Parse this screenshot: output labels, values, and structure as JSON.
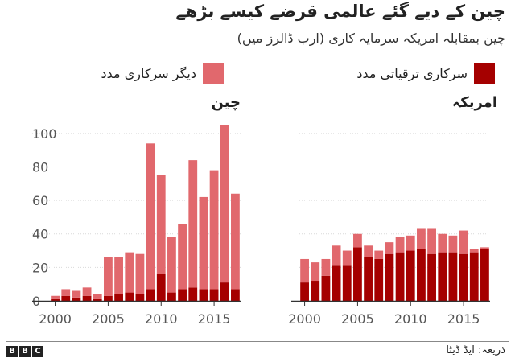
{
  "title": "چین کے دیے گئے عالمی قرضے کیسے بڑھے",
  "subtitle": "چین بمقابلہ امریکہ سرمایہ کاری (ارب ڈالرز میں)",
  "source": "ذریعہ: ایڈ ڈیٹا",
  "logo": [
    "B",
    "B",
    "C"
  ],
  "colors": {
    "dark": "#a50000",
    "light": "#e1686d"
  },
  "chart_data": [
    {
      "type": "bar",
      "stacked": true,
      "title": "چین",
      "x": [
        2000,
        2001,
        2002,
        2003,
        2004,
        2005,
        2006,
        2007,
        2008,
        2009,
        2010,
        2011,
        2012,
        2013,
        2014,
        2015,
        2016,
        2017
      ],
      "xticks": [
        "2000",
        "2005",
        "2010",
        "2015"
      ],
      "ylim": [
        0,
        110
      ],
      "yticks": [
        "0",
        "20",
        "40",
        "60",
        "80",
        "100"
      ],
      "grid": true,
      "series": [
        {
          "name": "سرکاری ترقیاتی مدد",
          "values": [
            1,
            3,
            2,
            3,
            1,
            3,
            4,
            5,
            4,
            7,
            16,
            5,
            7,
            8,
            7,
            7,
            11,
            7
          ]
        },
        {
          "name": "دیگر سرکاری مدد",
          "values": [
            2,
            4,
            4,
            5,
            3,
            23,
            22,
            24,
            24,
            87,
            59,
            33,
            39,
            76,
            55,
            71,
            94,
            57
          ]
        }
      ]
    },
    {
      "type": "bar",
      "stacked": true,
      "title": "امریکہ",
      "x": [
        2000,
        2001,
        2002,
        2003,
        2004,
        2005,
        2006,
        2007,
        2008,
        2009,
        2010,
        2011,
        2012,
        2013,
        2014,
        2015,
        2016,
        2017
      ],
      "xticks": [
        "2000",
        "2005",
        "2010",
        "2015"
      ],
      "ylim": [
        0,
        110
      ],
      "grid": true,
      "series": [
        {
          "name": "سرکاری ترقیاتی مدد",
          "values": [
            11,
            12,
            15,
            21,
            21,
            32,
            26,
            25,
            28,
            29,
            30,
            31,
            28,
            29,
            29,
            28,
            29,
            31
          ]
        },
        {
          "name": "دیگر سرکاری مدد",
          "values": [
            14,
            11,
            10,
            12,
            9,
            8,
            7,
            5,
            7,
            9,
            9,
            12,
            15,
            11,
            10,
            14,
            2,
            1
          ]
        }
      ]
    }
  ]
}
